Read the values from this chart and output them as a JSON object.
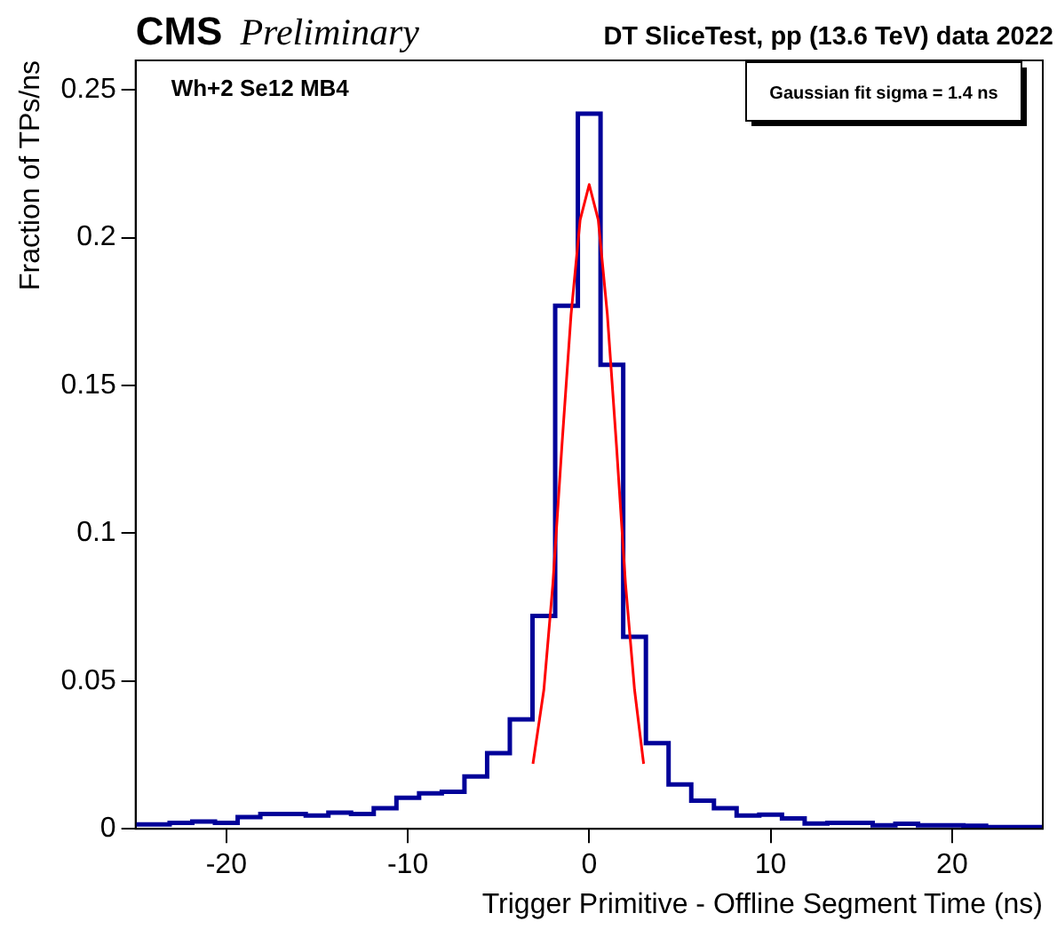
{
  "chart_data": {
    "type": "histogram",
    "title": "CMS Preliminary",
    "subtitle": "DT SliceTest, pp (13.6 TeV) data 2022",
    "xlabel": "Trigger Primitive - Offline Segment Time (ns)",
    "ylabel": "Fraction of TPs/ns",
    "annotations": [
      "Wh+2 Se12 MB4",
      "Gaussian fit sigma = 1.4 ns"
    ],
    "bins": [
      -25,
      -24.375,
      -23.125,
      -21.875,
      -20.625,
      -19.375,
      -18.125,
      -16.875,
      -15.625,
      -14.375,
      -13.125,
      -11.875,
      -10.625,
      -9.375,
      -8.125,
      -6.875,
      -5.625,
      -4.375,
      -3.125,
      -1.875,
      -0.625,
      0.625,
      1.875,
      3.125,
      4.375,
      5.625,
      6.875,
      8.125,
      9.375,
      10.625,
      11.875,
      13.125,
      14.375,
      15.625,
      16.875,
      18.125,
      19.375,
      20.625,
      21.875,
      23.125,
      24.375,
      25
    ],
    "series": [
      {
        "color": "#000099",
        "values": [
          0.0015,
          0.0015,
          0.002,
          0.0025,
          0.002,
          0.004,
          0.005,
          0.005,
          0.0045,
          0.0055,
          0.005,
          0.007,
          0.0105,
          0.012,
          0.0125,
          0.0177,
          0.0256,
          0.037,
          0.072,
          0.177,
          0.242,
          0.157,
          0.065,
          0.029,
          0.015,
          0.0095,
          0.007,
          0.0045,
          0.0048,
          0.0035,
          0.0018,
          0.002,
          0.002,
          0.0012,
          0.0017,
          0.0012,
          0.0012,
          0.001,
          0.0006,
          0.0006,
          0.0006
        ]
      },
      {
        "type": "line",
        "color": "#ff0000",
        "x": [
          -3.1,
          -2.5,
          -2,
          -1.5,
          -1,
          -0.5,
          0,
          0.5,
          1,
          1.5,
          2,
          2.5,
          3
        ],
        "values": [
          0.022,
          0.047,
          0.083,
          0.13,
          0.174,
          0.206,
          0.218,
          0.206,
          0.174,
          0.13,
          0.083,
          0.047,
          0.022
        ]
      }
    ],
    "xlim": [
      -25,
      25
    ],
    "xticks": [
      -20,
      -10,
      0,
      10,
      20
    ],
    "ylim": [
      0,
      0.26
    ],
    "yticks": [
      0,
      0.05,
      0.1,
      0.15,
      0.2,
      0.25
    ],
    "grid": false,
    "legend": false
  }
}
